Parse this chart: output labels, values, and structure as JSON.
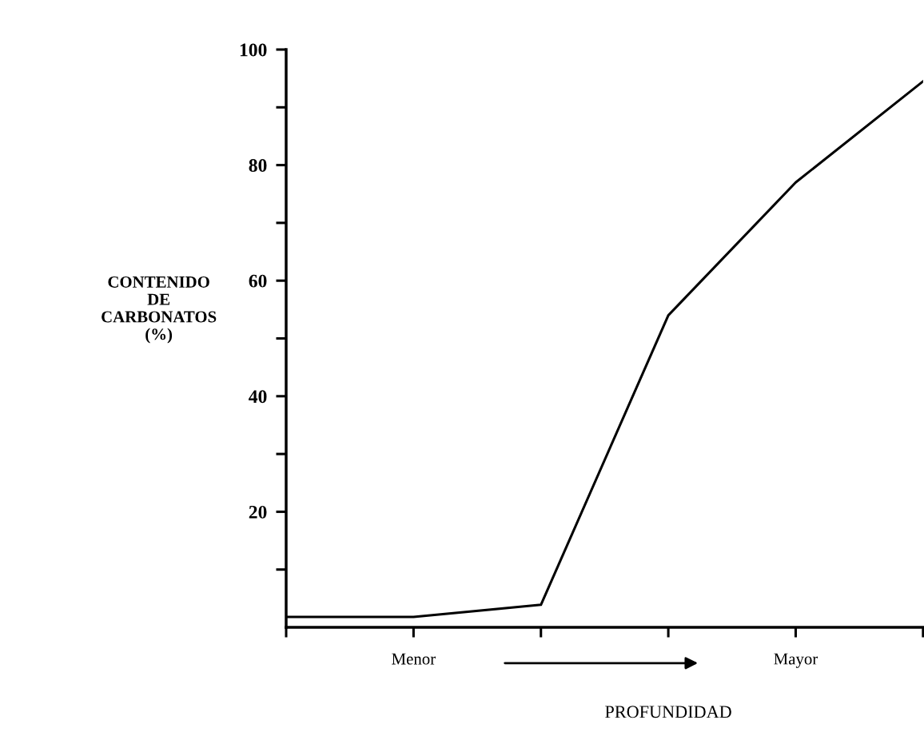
{
  "chart_data": {
    "type": "line",
    "xlabel": "PROFUNDIDAD",
    "ylabel": "CONTENIDO\nDE\nCARBONATOS\n(%)",
    "categories": [
      null,
      "Menor",
      null,
      null,
      "Mayor",
      null
    ],
    "values": [
      1.8,
      1.8,
      3.9,
      54,
      77,
      94.5
    ],
    "color": "#000000",
    "marker": "none",
    "line_style": "solid",
    "ylim": [
      0,
      100
    ],
    "yticks": [
      {
        "value": 10,
        "label": null
      },
      20,
      {
        "value": 30,
        "label": null
      },
      40,
      {
        "value": 50,
        "label": null
      },
      60,
      {
        "value": 70,
        "label": null
      },
      80,
      {
        "value": 90,
        "label": null
      },
      100
    ],
    "grid": false,
    "legend": false
  }
}
